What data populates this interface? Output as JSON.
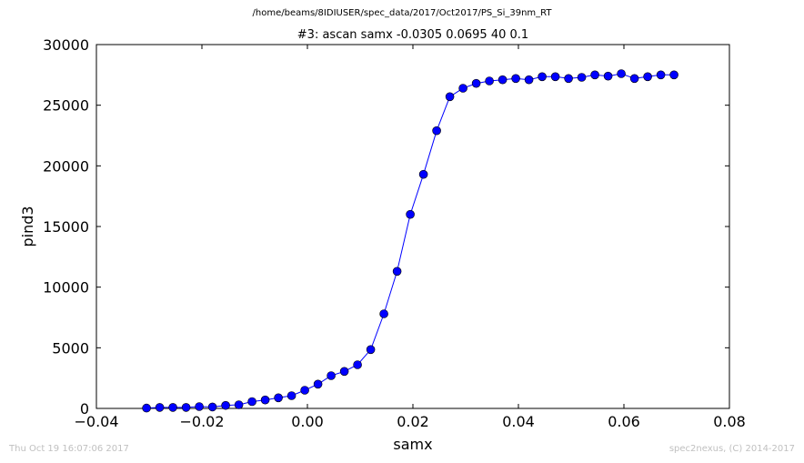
{
  "header": {
    "supertitle": "/home/beams/8IDIUSER/spec_data/2017/Oct2017/PS_Si_39nm_RT",
    "timestamp": "Thu Oct 19 16:07:06 2017",
    "credit": "spec2nexus, (C) 2014-2017"
  },
  "chart_data": {
    "type": "line",
    "title": "#3: ascan  samx -0.0305 0.0695  40 0.1",
    "xlabel": "samx",
    "ylabel": "pind3",
    "xlim": [
      -0.04,
      0.08
    ],
    "ylim": [
      0,
      30000
    ],
    "xticks": [
      "−0.04",
      "−0.02",
      "0.00",
      "0.02",
      "0.04",
      "0.06",
      "0.08"
    ],
    "yticks": [
      "0",
      "5000",
      "10000",
      "15000",
      "20000",
      "25000",
      "30000"
    ],
    "grid": false,
    "series_color": "#0000ff",
    "series": [
      {
        "x": [
          -0.0305,
          -0.028,
          -0.0255,
          -0.023,
          -0.0205,
          -0.018,
          -0.0155,
          -0.013,
          -0.0105,
          -0.008,
          -0.0055,
          -0.003,
          -0.0005,
          0.002,
          0.0045,
          0.007,
          0.0095,
          0.012,
          0.0145,
          0.017,
          0.0195,
          0.022,
          0.0245,
          0.027,
          0.0295,
          0.032,
          0.0345,
          0.037,
          0.0395,
          0.042,
          0.0445,
          0.047,
          0.0495,
          0.052,
          0.0545,
          0.057,
          0.0595,
          0.062,
          0.0645,
          0.067,
          0.0695
        ],
        "y": [
          30,
          80,
          80,
          80,
          150,
          120,
          250,
          300,
          560,
          700,
          880,
          1050,
          1500,
          2000,
          2700,
          3050,
          3600,
          4850,
          7800,
          11300,
          16000,
          19300,
          22900,
          25700,
          26400,
          26800,
          27000,
          27100,
          27200,
          27100,
          27350,
          27350,
          27200,
          27300,
          27500,
          27400,
          27600,
          27200,
          27350,
          27500,
          27500
        ]
      }
    ]
  }
}
